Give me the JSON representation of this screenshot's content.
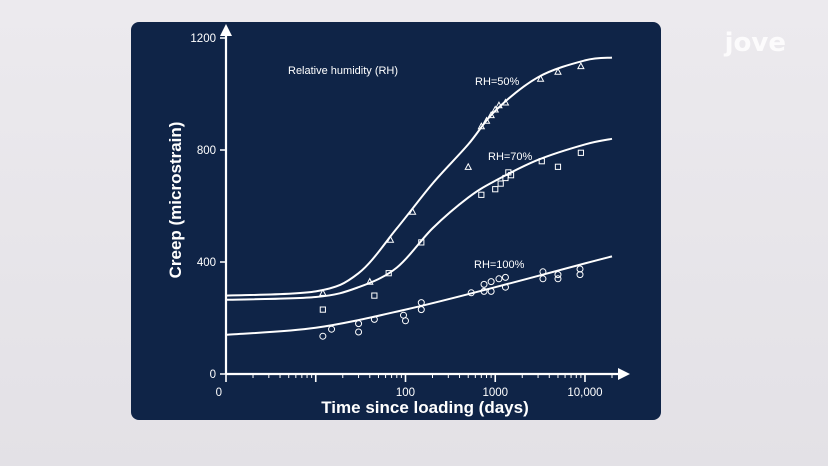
{
  "brand": {
    "logo_text": "jove"
  },
  "chart_data": {
    "type": "line",
    "title": "",
    "xlabel": "Time since loading (days)",
    "ylabel": "Creep (microstrain)",
    "x_scale": "log",
    "xlim": [
      1,
      20000
    ],
    "ylim": [
      0,
      1200
    ],
    "y_ticks": [
      0,
      400,
      800,
      1200
    ],
    "x_ticks": [
      {
        "value": 1,
        "label": "0"
      },
      {
        "value": 100,
        "label": "100"
      },
      {
        "value": 1000,
        "label": "1000"
      },
      {
        "value": 10000,
        "label": "10,000"
      }
    ],
    "annotation": "Relative humidity (RH)",
    "series": [
      {
        "name": "RH=50%",
        "marker": "triangle",
        "curve": [
          [
            1,
            280
          ],
          [
            10,
            295
          ],
          [
            30,
            360
          ],
          [
            80,
            520
          ],
          [
            200,
            680
          ],
          [
            500,
            820
          ],
          [
            1000,
            940
          ],
          [
            3000,
            1060
          ],
          [
            10000,
            1120
          ],
          [
            20000,
            1130
          ]
        ],
        "points": [
          [
            12,
            290
          ],
          [
            40,
            330
          ],
          [
            68,
            480
          ],
          [
            120,
            580
          ],
          [
            500,
            740
          ],
          [
            700,
            885
          ],
          [
            800,
            905
          ],
          [
            900,
            925
          ],
          [
            1000,
            945
          ],
          [
            1100,
            960
          ],
          [
            1300,
            970
          ],
          [
            3200,
            1055
          ],
          [
            5000,
            1080
          ],
          [
            9000,
            1100
          ]
        ]
      },
      {
        "name": "RH=70%",
        "marker": "square",
        "curve": [
          [
            1,
            265
          ],
          [
            10,
            275
          ],
          [
            30,
            310
          ],
          [
            80,
            380
          ],
          [
            200,
            520
          ],
          [
            500,
            630
          ],
          [
            1000,
            690
          ],
          [
            3000,
            765
          ],
          [
            10000,
            820
          ],
          [
            20000,
            840
          ]
        ],
        "points": [
          [
            12,
            230
          ],
          [
            45,
            280
          ],
          [
            65,
            360
          ],
          [
            150,
            470
          ],
          [
            700,
            640
          ],
          [
            1000,
            660
          ],
          [
            1150,
            680
          ],
          [
            1300,
            700
          ],
          [
            1400,
            720
          ],
          [
            1500,
            710
          ],
          [
            3300,
            760
          ],
          [
            5000,
            740
          ],
          [
            9000,
            790
          ]
        ]
      },
      {
        "name": "RH=100%",
        "marker": "circle",
        "curve": [
          [
            1,
            140
          ],
          [
            10,
            165
          ],
          [
            100,
            230
          ],
          [
            1000,
            310
          ],
          [
            10000,
            395
          ],
          [
            20000,
            420
          ]
        ],
        "points": [
          [
            12,
            135
          ],
          [
            15,
            160
          ],
          [
            30,
            150
          ],
          [
            30,
            180
          ],
          [
            45,
            195
          ],
          [
            95,
            210
          ],
          [
            100,
            190
          ],
          [
            150,
            255
          ],
          [
            150,
            230
          ],
          [
            540,
            290
          ],
          [
            750,
            320
          ],
          [
            750,
            295
          ],
          [
            900,
            330
          ],
          [
            900,
            295
          ],
          [
            1100,
            340
          ],
          [
            1300,
            345
          ],
          [
            1300,
            310
          ],
          [
            3400,
            365
          ],
          [
            3400,
            340
          ],
          [
            5000,
            355
          ],
          [
            5000,
            340
          ],
          [
            8800,
            375
          ],
          [
            8800,
            355
          ]
        ]
      }
    ]
  }
}
